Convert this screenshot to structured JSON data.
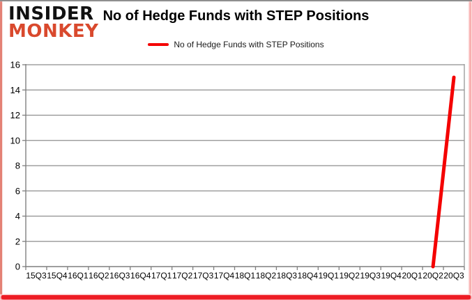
{
  "brand": {
    "line1": "INSIDER",
    "line2": "MONKEY",
    "color1": "#111111",
    "color2": "#d9492d"
  },
  "header": {
    "title": "No of Hedge Funds with STEP Positions"
  },
  "legend": {
    "label": "No of Hedge Funds with STEP Positions"
  },
  "chart_data": {
    "type": "line",
    "title": "No of Hedge Funds with STEP Positions",
    "categories": [
      "15Q3",
      "15Q4",
      "16Q1",
      "16Q2",
      "16Q3",
      "16Q4",
      "17Q1",
      "17Q2",
      "17Q3",
      "17Q4",
      "18Q1",
      "18Q2",
      "18Q3",
      "18Q4",
      "19Q1",
      "19Q2",
      "19Q3",
      "19Q4",
      "20Q1",
      "20Q2",
      "20Q3"
    ],
    "series": [
      {
        "name": "No of Hedge Funds with STEP Positions",
        "color": "#f40000",
        "values": [
          null,
          null,
          null,
          null,
          null,
          null,
          null,
          null,
          null,
          null,
          null,
          null,
          null,
          null,
          null,
          null,
          null,
          null,
          null,
          0,
          15
        ]
      }
    ],
    "ylim": [
      0,
      16
    ],
    "yticks": [
      0,
      2,
      4,
      6,
      8,
      10,
      12,
      14,
      16
    ],
    "grid": true,
    "legend_position": "top",
    "gridline_color": "#8e8e8e",
    "axis_color": "#7f7f7f"
  }
}
